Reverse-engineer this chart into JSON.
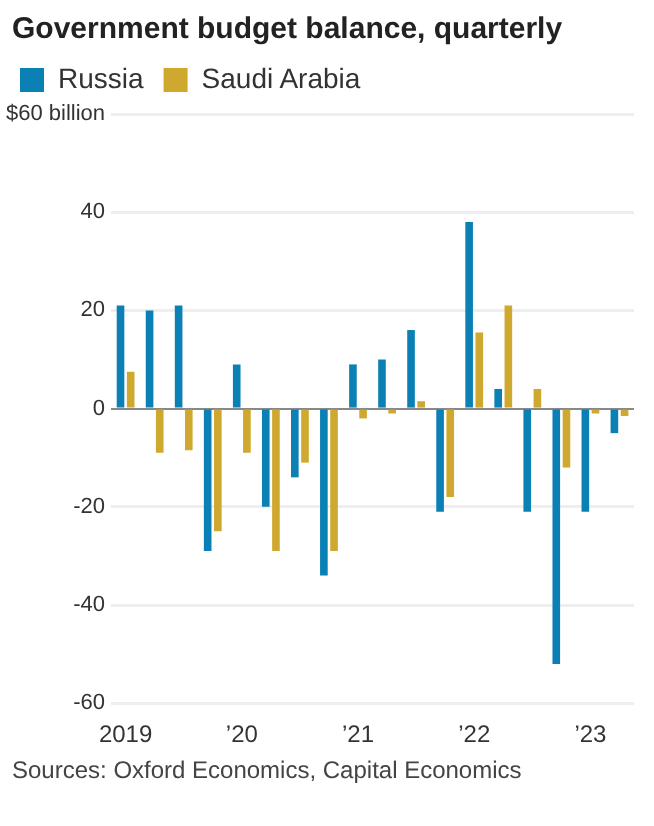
{
  "chart_data": {
    "type": "bar",
    "title": "Government budget balance, quarterly",
    "categories": [
      "2019",
      null,
      null,
      null,
      "’20",
      null,
      null,
      null,
      "’21",
      null,
      null,
      null,
      "’22",
      null,
      null,
      null,
      "’23",
      null
    ],
    "series": [
      {
        "name": "Russia",
        "color": "#0a80b4",
        "values": [
          21,
          20,
          21,
          -29,
          9,
          -20,
          -14,
          -34,
          9,
          10,
          16,
          -21,
          38,
          4,
          -21,
          -52,
          -21,
          -5
        ]
      },
      {
        "name": "Saudi Arabia",
        "color": "#cfa830",
        "values": [
          7.5,
          -9,
          -8.5,
          -25,
          -9,
          -29,
          -11,
          -29,
          -2,
          -1,
          1.5,
          -18,
          15.5,
          21,
          4,
          -12,
          -1,
          -1.5
        ]
      }
    ],
    "ylim": [
      -60,
      60
    ],
    "yticks": [
      -60,
      -40,
      -20,
      0,
      20,
      40,
      {
        "value": 60,
        "label": "$60 billion"
      }
    ],
    "grid": "y",
    "legend": "top left",
    "annotations": [
      "Sources: Oxford Economics, Capital Economics"
    ]
  }
}
